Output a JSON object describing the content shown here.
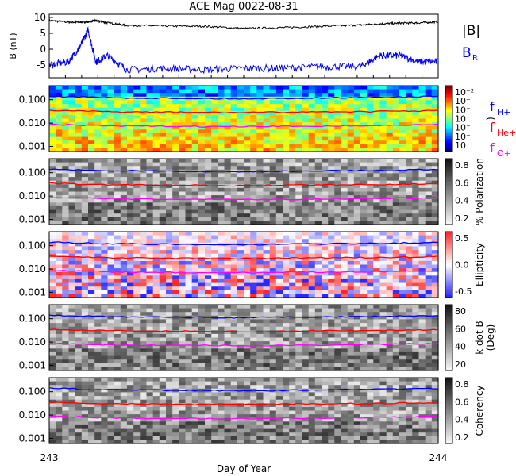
{
  "title": "ACE Mag 0022-08-31",
  "xlabel": "Day of Year",
  "x_ticks": [
    "243",
    "244"
  ],
  "colors": {
    "b_total": "#000000",
    "b_r": "#0000ff",
    "f_h": "#0000ff",
    "f_he": "#ff0000",
    "f_o": "#ff00ff"
  },
  "legend_top": {
    "b_total": "|B|",
    "b_r_main": "B",
    "b_r_sub": "R"
  },
  "legend_freq": [
    {
      "main": "f",
      "sub": "H+"
    },
    {
      "main": "f",
      "sub": "He+"
    },
    {
      "main": "f",
      "sub": "O+"
    }
  ],
  "chart_data": [
    {
      "type": "line",
      "panel": "magnetic field",
      "ylabel": "B (nT)",
      "ylim": [
        -9,
        11
      ],
      "y_ticks": [
        "10",
        "5",
        "0",
        "-5"
      ],
      "x": [
        243.0,
        243.05,
        243.08,
        243.1,
        243.12,
        243.15,
        243.2,
        243.3,
        243.4,
        243.5,
        243.6,
        243.7,
        243.8,
        243.85,
        243.9,
        243.95,
        244.0
      ],
      "series": [
        {
          "name": "|B|",
          "values": [
            9,
            8.5,
            8.5,
            8.6,
            9,
            8.3,
            7.5,
            7.3,
            7.2,
            6.5,
            6.8,
            7.2,
            7.6,
            8,
            8.2,
            8.3,
            8.6
          ]
        },
        {
          "name": "B_R",
          "values": [
            -5,
            -4,
            1,
            6,
            -4,
            -2,
            -6.5,
            -6,
            -6.5,
            -6,
            -6,
            -5.5,
            -5.5,
            -2,
            -2,
            -4,
            -4
          ]
        }
      ]
    },
    {
      "type": "heatmap",
      "panel": "power spectrum",
      "y_ticks": [
        "0.100",
        "0.010",
        "0.001"
      ],
      "colorbar_ticks": [
        "10⁻²",
        "10⁻",
        "10⁻",
        "10⁻",
        "10⁻",
        "10⁻",
        "10⁻"
      ],
      "colorbar_label": ")"
    },
    {
      "type": "heatmap",
      "panel": "polarization",
      "y_ticks": [
        "0.100",
        "0.010",
        "0.001"
      ],
      "colorbar_label": "% Polarization",
      "colorbar_ticks": [
        "0.8",
        "0.6",
        "0.4",
        "0.2"
      ]
    },
    {
      "type": "heatmap",
      "panel": "ellipticity",
      "y_ticks": [
        "0.100",
        "0.010",
        "0.001"
      ],
      "colorbar_label": "Ellipticity",
      "colorbar_ticks": [
        "0.5",
        "0.0",
        "-0.5"
      ]
    },
    {
      "type": "heatmap",
      "panel": "k dot B",
      "y_ticks": [
        "0.100",
        "0.010",
        "0.001"
      ],
      "colorbar_label": "k dot B",
      "colorbar_label2": "(Deg)",
      "colorbar_ticks": [
        "80",
        "60",
        "40",
        "20"
      ]
    },
    {
      "type": "heatmap",
      "panel": "coherency",
      "y_ticks": [
        "0.100",
        "0.010",
        "0.001"
      ],
      "colorbar_label": "Coherency",
      "colorbar_ticks": [
        "0.8",
        "0.6",
        "0.4",
        "0.2"
      ]
    }
  ],
  "gyro_lines": {
    "f_h": [
      0.14,
      0.12,
      0.115,
      0.11,
      0.118,
      0.125,
      0.138
    ],
    "f_he": [
      0.035,
      0.03,
      0.029,
      0.028,
      0.03,
      0.031,
      0.034
    ],
    "f_o": [
      0.0088,
      0.0075,
      0.0072,
      0.007,
      0.0074,
      0.0078,
      0.0086
    ]
  }
}
